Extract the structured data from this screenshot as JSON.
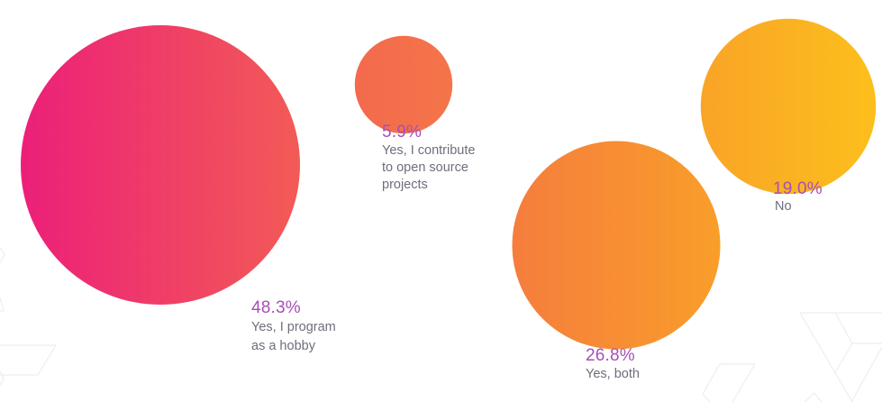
{
  "chart_data": {
    "type": "bubble",
    "title": "",
    "series": [
      {
        "name": "Yes, I program as a hobby",
        "label_lines": "Yes, I program\nas a hobby",
        "value": 48.3,
        "value_label": "48.3%",
        "gradient": [
          "#ec1f79",
          "#f25b56"
        ]
      },
      {
        "name": "Yes, I contribute to open source projects",
        "label_lines": "Yes, I contribute\nto open source\nprojects",
        "value": 5.9,
        "value_label": "5.9%",
        "gradient": [
          "#f36a4c",
          "#f4754a"
        ]
      },
      {
        "name": "Yes, both",
        "label_lines": "Yes, both",
        "value": 26.8,
        "value_label": "26.8%",
        "gradient": [
          "#f57d3d",
          "#f99e2a"
        ]
      },
      {
        "name": "No",
        "label_lines": "No",
        "value": 19.0,
        "value_label": "19.0%",
        "gradient": [
          "#f9a427",
          "#fcbf1c"
        ]
      }
    ],
    "colors": {
      "percent_text": "#a64fb6",
      "label_text": "#6e6e7e",
      "background": "#ffffff"
    }
  }
}
